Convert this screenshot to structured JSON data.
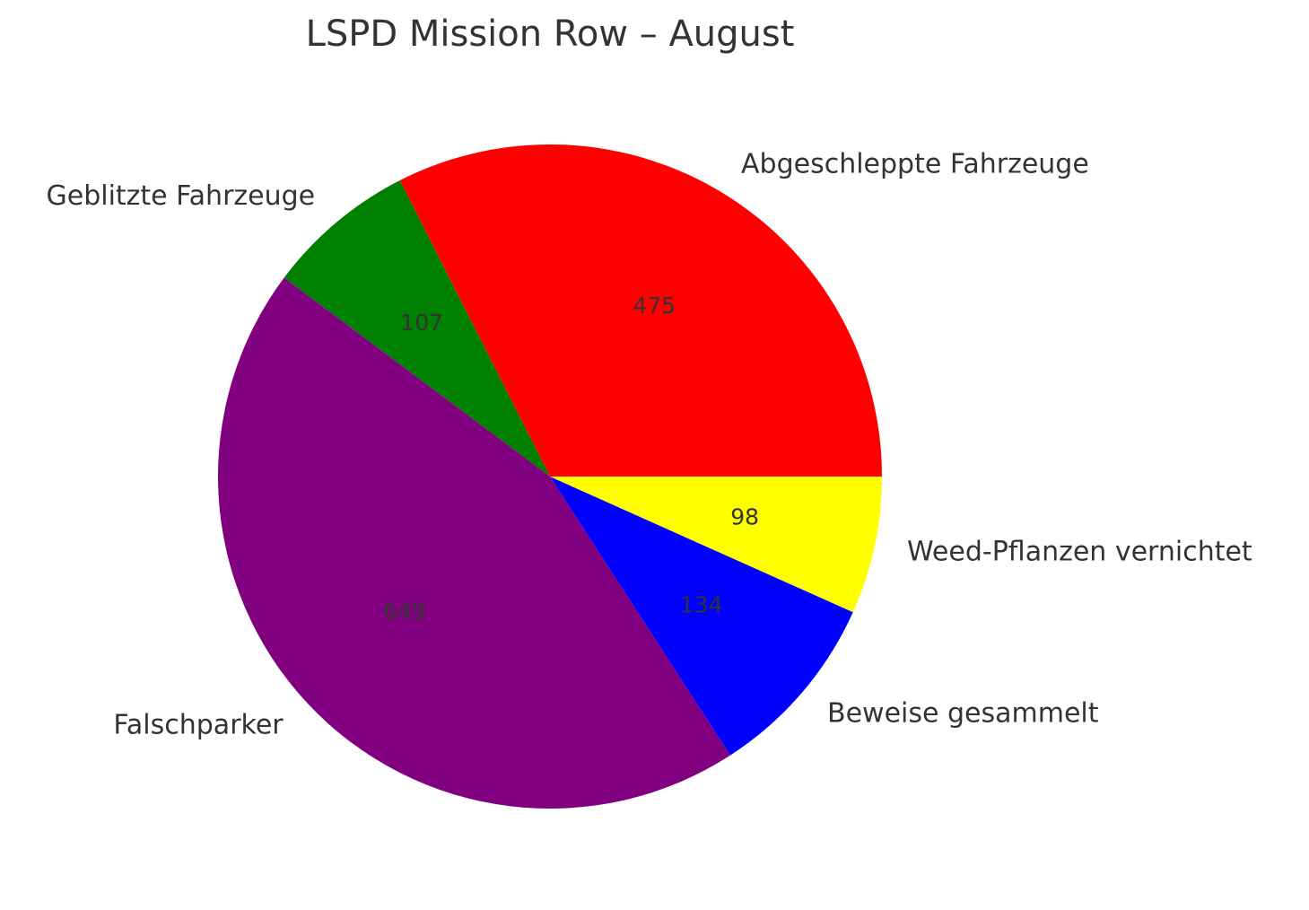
{
  "chart_data": {
    "type": "pie",
    "title": "LSPD Mission Row – August",
    "categories": [
      "Abgeschleppte Fahrzeuge",
      "Geblitzte Fahrzeuge",
      "Falschparker",
      "Beweise gesammelt",
      "Weed-Pflanzen vernichtet"
    ],
    "values": [
      475,
      107,
      649,
      134,
      98
    ],
    "colors": [
      "#ff0000",
      "#008000",
      "#800080",
      "#0000ff",
      "#ffff00"
    ]
  }
}
